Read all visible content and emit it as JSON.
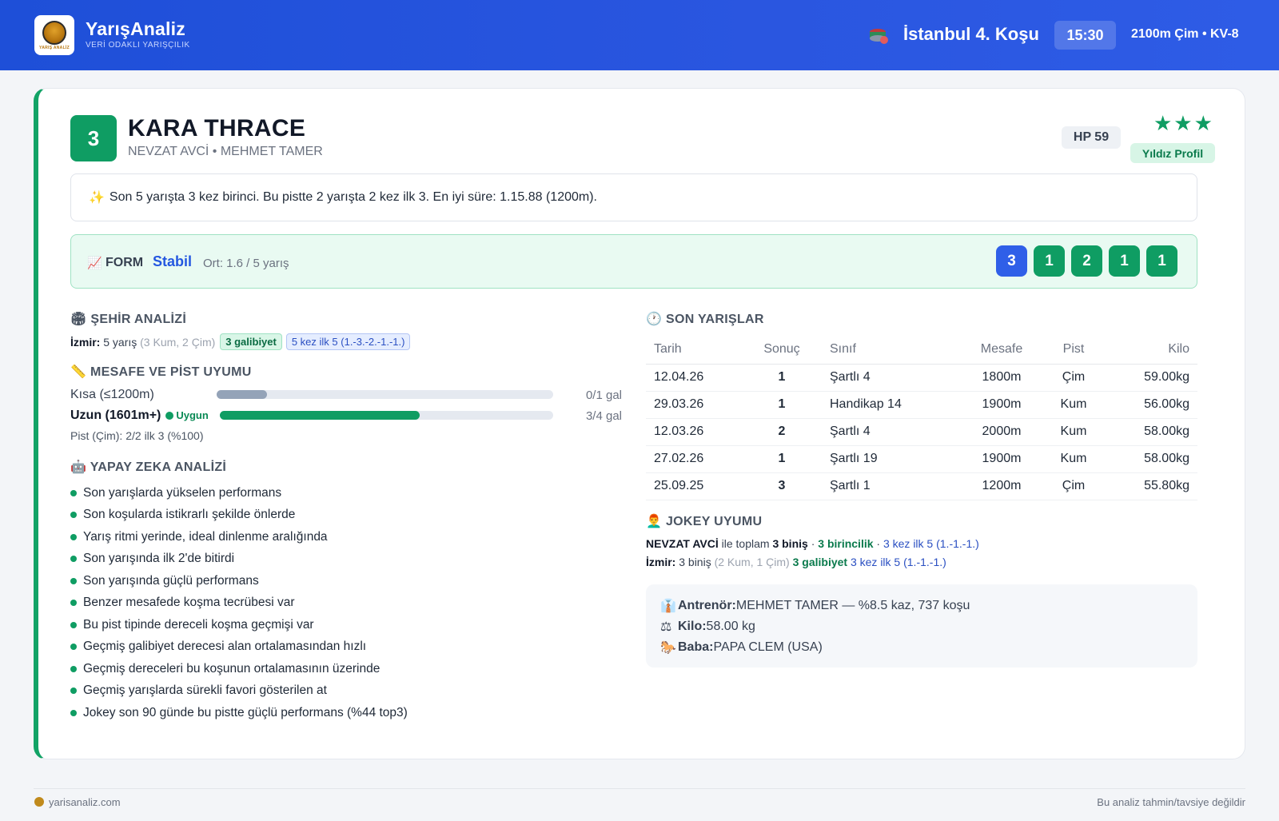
{
  "header": {
    "brand_name": "YarışAnaliz",
    "brand_sub": "VERİ ODAKLI YARIŞÇILIK",
    "logo_mini": "YARIŞ ANALİZ",
    "race_title": "İstanbul 4. Koşu",
    "time": "15:30",
    "race_meta": "2100m Çim • KV-8",
    "colors": {
      "bg_start": "#1e4fd8",
      "bg_end": "#2e5ce6"
    }
  },
  "horse": {
    "number": "3",
    "name": "KARA THRACE",
    "sub": "NEVZAT AVCİ • MEHMET TAMER",
    "hp": "HP 59",
    "stars": "★★★",
    "profile": "Yıldız Profil",
    "accent": "#0f9d63"
  },
  "summary": {
    "icon": "✨",
    "text": "Son 5 yarışta 3 kez birinci. Bu pistte 2 yarışta 2 kez ilk 3. En iyi süre: 1.15.88 (1200m)."
  },
  "form": {
    "icon": "📈",
    "label": "FORM",
    "status": "Stabil",
    "avg": "Ort: 1.6 / 5 yarış",
    "results": [
      "3",
      "1",
      "2",
      "1",
      "1"
    ]
  },
  "city": {
    "title": "ŞEHİR ANALİZİ",
    "icon": "🏟",
    "city_label": "İzmir:",
    "races": "5 yarış",
    "detail": "(3 Kum, 2 Çim)",
    "wins_tag": "3 galibiyet",
    "top5_tag": "5 kez ilk 5 (1.-3.-2.-1.-1.)"
  },
  "distance": {
    "title": "MESAFE VE PİST UYUMU",
    "icon": "📏",
    "rows": [
      {
        "label": "Kısa (≤1200m)",
        "value": "0/1 gal",
        "fill": 0.15,
        "color": "#94a3b8"
      },
      {
        "label": "Uzun (1601m+)",
        "value": "3/4 gal",
        "fill": 0.6,
        "color": "#0f9d63",
        "badge": "Uygun"
      }
    ],
    "pist": "Pist (Çim): 2/2 ilk 3 (%100)"
  },
  "ai": {
    "title": "YAPAY ZEKA ANALİZİ",
    "icon": "🤖",
    "items": [
      "Son yarışlarda yükselen performans",
      "Son koşularda istikrarlı şekilde önlerde",
      "Yarış ritmi yerinde, ideal dinlenme aralığında",
      "Son yarışında ilk 2'de bitirdi",
      "Son yarışında güçlü performans",
      "Benzer mesafede koşma tecrübesi var",
      "Bu pist tipinde dereceli koşma geçmişi var",
      "Geçmiş galibiyet derecesi alan ortalamasından hızlı",
      "Geçmiş dereceleri bu koşunun ortalamasının üzerinde",
      "Geçmiş yarışlarda sürekli favori gösterilen at",
      "Jokey son 90 günde bu pistte güçlü performans (%44 top3)"
    ]
  },
  "recent": {
    "title": "SON YARIŞLAR",
    "icon": "🕐",
    "columns": [
      "Tarih",
      "Sonuç",
      "Sınıf",
      "Mesafe",
      "Pist",
      "Kilo"
    ],
    "rows": [
      [
        "12.04.26",
        "1",
        "Şartlı 4",
        "1800m",
        "Çim",
        "59.00kg"
      ],
      [
        "29.03.26",
        "1",
        "Handikap 14",
        "1900m",
        "Kum",
        "56.00kg"
      ],
      [
        "12.03.26",
        "2",
        "Şartlı 4",
        "2000m",
        "Kum",
        "58.00kg"
      ],
      [
        "27.02.26",
        "1",
        "Şartlı 19",
        "1900m",
        "Kum",
        "58.00kg"
      ],
      [
        "25.09.25",
        "3",
        "Şartlı 1",
        "1200m",
        "Çim",
        "55.80kg"
      ]
    ]
  },
  "jockey": {
    "title": "JOKEY UYUMU",
    "icon": "👨‍🦰",
    "line1": {
      "name": "NEVZAT AVCİ",
      "mid": " ile toplam ",
      "rides": "3 biniş",
      "sep1": " · ",
      "wins": "3 birincilik",
      "sep2": " · ",
      "top5": "3 kez ilk 5 (1.-1.-1.)"
    },
    "line2": {
      "city": "İzmir:",
      "rides": " 3 biniş ",
      "detail": "(2 Kum, 1 Çim)",
      "wins": " 3 galibiyet",
      "top5": " 3 kez ilk 5 (1.-1.-1.)"
    }
  },
  "info": {
    "trainer_icon": "👔",
    "trainer_label": "Antrenör:",
    "trainer_value": " MEHMET TAMER — %8.5 kaz, 737 koşu",
    "weight_icon": "⚖",
    "weight_label": "Kilo:",
    "weight_value": " 58.00 kg",
    "sire_icon": "🐎",
    "sire_label": "Baba:",
    "sire_value": " PAPA CLEM (USA)"
  },
  "footer": {
    "site": "yarisanaliz.com",
    "disclaimer": "Bu analiz tahmin/tavsiye değildir"
  }
}
